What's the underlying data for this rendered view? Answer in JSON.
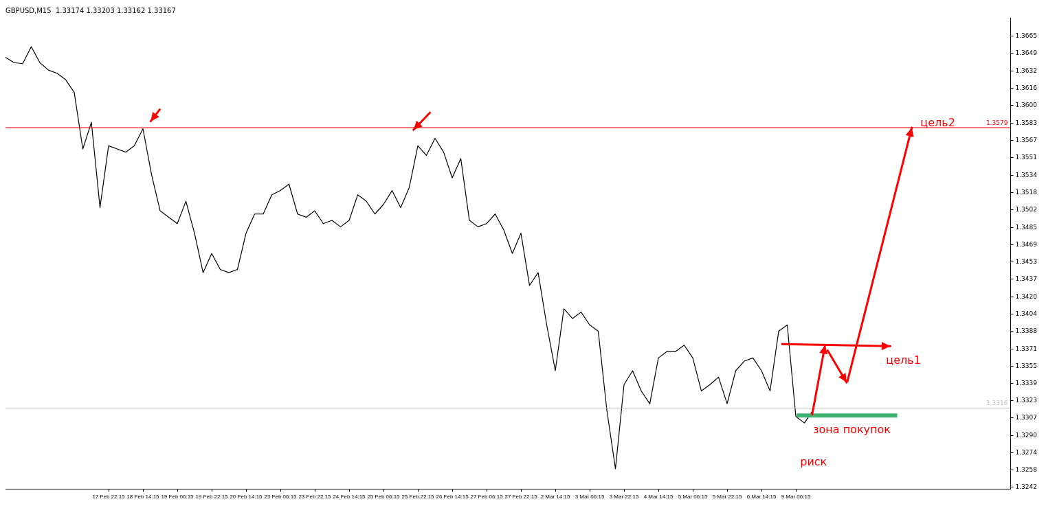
{
  "chart_data": {
    "type": "line",
    "title": "GBPUSD,M15  1.33174 1.33203 1.33162 1.33167",
    "categories": [
      null,
      null,
      null,
      null,
      null,
      null,
      null,
      null,
      null,
      null,
      null,
      null,
      "17 Feb 22:15",
      null,
      null,
      null,
      "18 Feb 14:15",
      null,
      null,
      null,
      "19 Feb 06:15",
      null,
      null,
      null,
      "19 Feb 22:15",
      null,
      null,
      null,
      "20 Feb 14:15",
      null,
      null,
      null,
      "23 Feb 06:15",
      null,
      null,
      null,
      "23 Feb 22:15",
      null,
      null,
      null,
      "24 Feb 14:15",
      null,
      null,
      null,
      "25 Feb 06:15",
      null,
      null,
      null,
      "25 Feb 22:15",
      null,
      null,
      null,
      "26 Feb 14:15",
      null,
      null,
      null,
      "27 Feb 06:15",
      null,
      null,
      null,
      "27 Feb 22:15",
      null,
      null,
      null,
      "2 Mar 14:15",
      null,
      null,
      null,
      "3 Mar 06:15",
      null,
      null,
      null,
      "3 Mar 22:15",
      null,
      null,
      null,
      "4 Mar 14:15",
      null,
      null,
      null,
      "5 Mar 06:15",
      null,
      null,
      null,
      "5 Mar 22:15",
      null,
      null,
      null,
      "6 Mar 14:15",
      null,
      null,
      null,
      "9 Mar 06:15",
      null,
      null,
      null,
      null,
      null,
      null,
      null,
      null,
      null,
      null,
      null,
      null,
      null,
      null,
      null,
      null,
      null,
      null,
      null,
      null,
      null,
      null,
      null,
      null,
      null
    ],
    "values": [
      1.3645,
      1.364,
      1.3639,
      1.3655,
      1.364,
      1.3633,
      1.363,
      1.3624,
      1.3612,
      1.3559,
      1.3584,
      1.3504,
      1.3562,
      1.3559,
      1.3556,
      1.3562,
      1.3578,
      1.3535,
      1.3501,
      1.3495,
      1.3489,
      1.351,
      1.348,
      1.3443,
      1.3461,
      1.3446,
      1.3443,
      1.3446,
      1.348,
      1.3498,
      1.3498,
      1.3516,
      1.352,
      1.3526,
      1.3498,
      1.3495,
      1.3501,
      1.3489,
      1.3492,
      1.3486,
      1.3492,
      1.3516,
      1.351,
      1.3498,
      1.3507,
      1.352,
      1.3504,
      1.3523,
      1.3562,
      1.3553,
      1.3569,
      1.3556,
      1.3532,
      1.355,
      1.3492,
      1.3486,
      1.3489,
      1.3498,
      1.3483,
      1.3461,
      1.348,
      1.3431,
      1.3443,
      1.3394,
      1.3351,
      1.3409,
      1.34,
      1.3406,
      1.3394,
      1.3388,
      1.3314,
      1.3259,
      1.3338,
      1.3351,
      1.3332,
      1.332,
      1.3363,
      1.3369,
      1.3369,
      1.3375,
      1.3363,
      1.3332,
      1.3338,
      1.3345,
      1.332,
      1.3351,
      1.336,
      1.3363,
      1.3351,
      1.3332,
      1.3388,
      1.3394,
      1.3308,
      1.3302,
      1.3314,
      null,
      null,
      null,
      null,
      null,
      null,
      null,
      null,
      null,
      null,
      null,
      null,
      null,
      null,
      null,
      null,
      null,
      null,
      null,
      null,
      null,
      null,
      null
    ],
    "color": "#000000",
    "ylim": [
      1.324,
      1.3682
    ],
    "yticks": [
      1.3242,
      1.3258,
      1.3274,
      {
        "value": 1.329,
        "label": "1.3290"
      },
      1.3307,
      1.3323,
      1.3339,
      1.3355,
      1.3371,
      1.3388,
      1.3404,
      {
        "value": 1.342,
        "label": "1.3420"
      },
      1.3437,
      1.3453,
      1.3469,
      1.3485,
      1.3502,
      1.3518,
      1.3534,
      1.3551,
      1.3567,
      1.3583,
      {
        "value": 1.36,
        "label": "1.3600"
      },
      1.3616,
      1.3632,
      1.3649,
      1.3665
    ],
    "ref_lines": [
      {
        "axis": "y",
        "value": 1.3579,
        "label": "1.3579",
        "color": "#ff0000"
      },
      {
        "axis": "y",
        "value": 1.3316,
        "label": "1.3316",
        "color": "#c0c0c0"
      }
    ],
    "annotations": [
      {
        "text": "цель2",
        "y": 1.3579
      },
      "цель1",
      "зона покупок",
      "риск"
    ]
  }
}
